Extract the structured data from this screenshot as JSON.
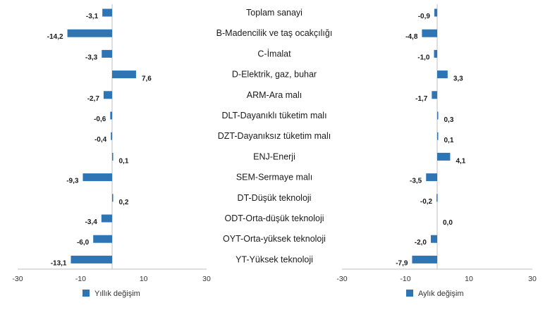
{
  "chart_data": {
    "type": "bar",
    "orientation": "horizontal",
    "categories": [
      "Toplam sanayi",
      "B-Madencilik ve taş ocakçılığı",
      "C-İmalat",
      "D-Elektrik, gaz, buhar",
      "ARM-Ara malı",
      "DLT-Dayanıklı tüketim malı",
      "DZT-Dayanıksız tüketim malı",
      "ENJ-Enerji",
      "SEM-Sermaye malı",
      "DT-Düşük teknoloji",
      "ODT-Orta-düşük teknoloji",
      "OYT-Orta-yüksek teknoloji",
      "YT-Yüksek teknoloji"
    ],
    "panels": [
      {
        "series_name": "Yıllık değişim",
        "values": [
          -3.1,
          -14.2,
          -3.3,
          7.6,
          -2.7,
          -0.6,
          -0.4,
          0.1,
          -9.3,
          0.2,
          -3.4,
          -6.0,
          -13.1
        ],
        "value_labels": [
          "-3,1",
          "-14,2",
          "-3,3",
          "7,6",
          "-2,7",
          "-0,6",
          "-0,4",
          "0,1",
          "-9,3",
          "0,2",
          "-3,4",
          "-6,0",
          "-13,1"
        ],
        "xlim": [
          -30,
          30
        ],
        "xticks": [
          "-30",
          "-10",
          "10",
          "30"
        ],
        "xtick_values": [
          -30,
          -10,
          10,
          30
        ]
      },
      {
        "series_name": "Aylık değişim",
        "values": [
          -0.9,
          -4.8,
          -1.0,
          3.3,
          -1.7,
          0.3,
          0.1,
          4.1,
          -3.5,
          -0.2,
          0.0,
          -2.0,
          -7.9
        ],
        "value_labels": [
          "-0,9",
          "-4,8",
          "-1,0",
          "3,3",
          "-1,7",
          "0,3",
          "0,1",
          "4,1",
          "-3,5",
          "-0,2",
          "0,0",
          "-2,0",
          "-7,9"
        ],
        "xlim": [
          -30,
          30
        ],
        "xticks": [
          "-30",
          "-10",
          "10",
          "30"
        ],
        "xtick_values": [
          -30,
          -10,
          10,
          30
        ]
      }
    ],
    "bar_color": "#2E75B6",
    "axis_color": "#bfbfbf",
    "legend_position": "bottom-left",
    "grid": false
  }
}
